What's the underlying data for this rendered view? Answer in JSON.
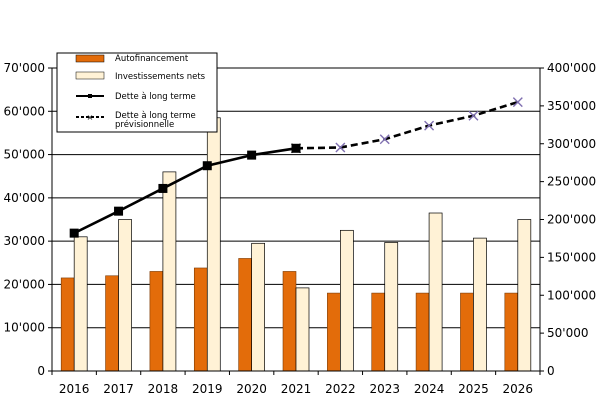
{
  "chart_data": {
    "type": "bar+line",
    "categories": [
      "2016",
      "2017",
      "2018",
      "2019",
      "2020",
      "2021",
      "2022",
      "2023",
      "2024",
      "2025",
      "2026"
    ],
    "bar_series": [
      {
        "name": "Autofinancement",
        "color": "#E36C0A",
        "values": [
          21500,
          22000,
          23000,
          23800,
          26000,
          23000,
          18000,
          18000,
          18000,
          18000,
          18000
        ]
      },
      {
        "name": "Investissements nets",
        "color": "#FFF2D6",
        "values": [
          31000,
          35000,
          46000,
          58500,
          29500,
          19200,
          32500,
          29700,
          36500,
          30700,
          35000
        ]
      }
    ],
    "line_series": [
      {
        "name": "Dette à long terme",
        "style": "solid",
        "marker": "square",
        "x": [
          "2016",
          "2017",
          "2018",
          "2019",
          "2020",
          "2021"
        ],
        "values": [
          182000,
          211000,
          241000,
          271000,
          285000,
          294000
        ]
      },
      {
        "name": "Dette à long terme prévisionnelle",
        "style": "dashed",
        "marker": "x",
        "x": [
          "2021",
          "2022",
          "2023",
          "2024",
          "2025",
          "2026"
        ],
        "values": [
          294000,
          295000,
          306000,
          324000,
          337000,
          355000
        ]
      }
    ],
    "y_left": {
      "min": 0,
      "max": 70000,
      "step": 10000,
      "tick_labels": [
        "0",
        "10'000",
        "20'000",
        "30'000",
        "40'000",
        "50'000",
        "60'000",
        "70'000"
      ]
    },
    "y_right": {
      "min": 0,
      "max": 400000,
      "step": 50000,
      "tick_labels": [
        "0",
        "50'000",
        "100'000",
        "150'000",
        "200'000",
        "250'000",
        "300'000",
        "350'000",
        "400'000"
      ]
    },
    "grid": true,
    "legend_position": "top-left"
  },
  "legend": {
    "items": [
      {
        "label": "Autofinancement"
      },
      {
        "label": "Investissements nets"
      },
      {
        "label": "Dette à long terme"
      },
      {
        "label_line1": "Dette à long terme",
        "label_line2": "prévisionnelle"
      }
    ]
  }
}
